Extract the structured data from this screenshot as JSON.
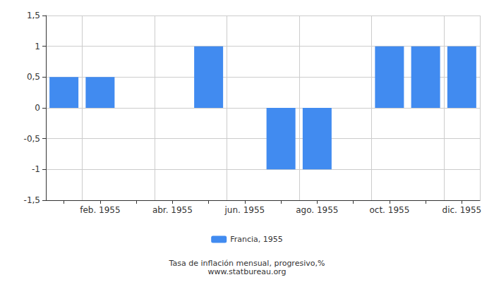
{
  "chart_data": {
    "type": "bar",
    "title": "Tasa de inflación mensual, progresivo,%",
    "subtitle": "www.statbureau.org",
    "categories": [
      null,
      "feb. 1955",
      null,
      "abr. 1955",
      null,
      "jun. 1955",
      null,
      "ago. 1955",
      null,
      "oct. 1955",
      null,
      "dic. 1955"
    ],
    "series": [
      {
        "name": "Francia, 1955",
        "color": "#418bf0",
        "values": [
          0.5,
          0.5,
          0,
          0,
          1,
          0,
          -1,
          -1,
          0,
          1,
          1,
          1
        ]
      }
    ],
    "ylim": [
      -1.5,
      1.5
    ],
    "yticks": [
      {
        "value": -1.5,
        "label": "-1,5"
      },
      -1,
      {
        "value": -0.5,
        "label": "-0,5"
      },
      0,
      {
        "value": 0.5,
        "label": "0,5"
      },
      1,
      {
        "value": 1.5,
        "label": "1,5"
      }
    ],
    "grid": true,
    "legend": "bottom"
  }
}
